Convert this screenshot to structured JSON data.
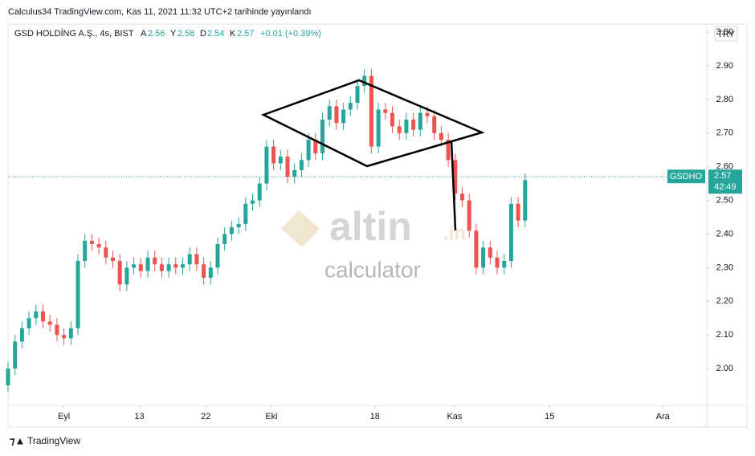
{
  "chart_data": {
    "type": "candlestick",
    "published": "Calculus34 TradingView.com, Kas 11, 2021 11:32 UTC+2 tarihinde yayınlandı",
    "symbol": "GSD HOLDİNG A.Ş., 4s, BIST",
    "legend_items": [
      {
        "key": "A",
        "value": 2.56
      },
      {
        "key": "Y",
        "value": 2.58
      },
      {
        "key": "D",
        "value": 2.54
      },
      {
        "key": "K",
        "value": 2.57
      }
    ],
    "change": "+0.01 (+0.39%)",
    "currency": "TRY",
    "last_label": "GSDHO",
    "last_price": 2.57,
    "countdown": "42:49",
    "watermark": [
      "altin",
      ".in",
      "calculator"
    ],
    "footer": "TradingView",
    "up_color": "#26a69a",
    "down_color": "#ef5350",
    "x": [
      0,
      1,
      2,
      3,
      4,
      5,
      6,
      7,
      8,
      9,
      10,
      11,
      12,
      13,
      14,
      15,
      16,
      17,
      18,
      19,
      20,
      21,
      22,
      23,
      24,
      25,
      26,
      27,
      28,
      29,
      30,
      31,
      32,
      33,
      34,
      35,
      36,
      37,
      38,
      39,
      40,
      41,
      42,
      43,
      44,
      45,
      46,
      47,
      48,
      49,
      50,
      51,
      52,
      53,
      54,
      55,
      56,
      57,
      58,
      59,
      60,
      61,
      62,
      63,
      64,
      65,
      66,
      67,
      68,
      69,
      70,
      71,
      72,
      73,
      74
    ],
    "open": [
      1.95,
      2.0,
      2.08,
      2.12,
      2.15,
      2.17,
      2.14,
      2.13,
      2.1,
      2.09,
      2.12,
      2.32,
      2.38,
      2.37,
      2.36,
      2.33,
      2.32,
      2.25,
      2.3,
      2.31,
      2.29,
      2.33,
      2.31,
      2.29,
      2.31,
      2.3,
      2.31,
      2.34,
      2.31,
      2.27,
      2.3,
      2.37,
      2.4,
      2.42,
      2.43,
      2.49,
      2.5,
      2.55,
      2.66,
      2.61,
      2.63,
      2.57,
      2.59,
      2.62,
      2.68,
      2.64,
      2.74,
      2.78,
      2.73,
      2.77,
      2.79,
      2.84,
      2.87,
      2.66,
      2.77,
      2.76,
      2.72,
      2.7,
      2.74,
      2.71,
      2.76,
      2.75,
      2.7,
      2.68,
      2.62,
      2.52,
      2.5,
      2.41,
      2.3,
      2.36,
      2.33,
      2.3,
      2.32,
      2.49,
      2.44
    ],
    "high": [
      2.02,
      2.1,
      2.14,
      2.17,
      2.19,
      2.19,
      2.16,
      2.15,
      2.12,
      2.14,
      2.34,
      2.4,
      2.4,
      2.39,
      2.38,
      2.35,
      2.34,
      2.32,
      2.33,
      2.33,
      2.35,
      2.35,
      2.33,
      2.33,
      2.33,
      2.33,
      2.36,
      2.36,
      2.33,
      2.32,
      2.39,
      2.42,
      2.44,
      2.45,
      2.51,
      2.52,
      2.57,
      2.68,
      2.68,
      2.65,
      2.65,
      2.61,
      2.64,
      2.7,
      2.7,
      2.76,
      2.8,
      2.8,
      2.79,
      2.81,
      2.86,
      2.89,
      2.89,
      2.79,
      2.79,
      2.78,
      2.74,
      2.76,
      2.76,
      2.78,
      2.78,
      2.77,
      2.72,
      2.7,
      2.64,
      2.54,
      2.52,
      2.43,
      2.38,
      2.38,
      2.35,
      2.34,
      2.51,
      2.51,
      2.58
    ],
    "low": [
      1.93,
      1.98,
      2.06,
      2.1,
      2.13,
      2.12,
      2.11,
      2.08,
      2.07,
      2.07,
      2.1,
      2.3,
      2.35,
      2.34,
      2.31,
      2.3,
      2.23,
      2.23,
      2.28,
      2.27,
      2.27,
      2.29,
      2.27,
      2.27,
      2.28,
      2.28,
      2.29,
      2.29,
      2.25,
      2.25,
      2.28,
      2.35,
      2.38,
      2.4,
      2.41,
      2.47,
      2.48,
      2.53,
      2.59,
      2.59,
      2.55,
      2.55,
      2.57,
      2.6,
      2.62,
      2.62,
      2.72,
      2.71,
      2.71,
      2.75,
      2.77,
      2.82,
      2.64,
      2.64,
      2.74,
      2.7,
      2.68,
      2.68,
      2.69,
      2.69,
      2.73,
      2.68,
      2.66,
      2.6,
      2.5,
      2.48,
      2.39,
      2.28,
      2.28,
      2.31,
      2.28,
      2.28,
      2.3,
      2.42,
      2.42
    ],
    "close": [
      2.0,
      2.08,
      2.12,
      2.15,
      2.17,
      2.14,
      2.13,
      2.1,
      2.09,
      2.12,
      2.32,
      2.38,
      2.37,
      2.36,
      2.33,
      2.32,
      2.25,
      2.3,
      2.31,
      2.29,
      2.33,
      2.31,
      2.29,
      2.31,
      2.3,
      2.31,
      2.34,
      2.31,
      2.27,
      2.3,
      2.37,
      2.4,
      2.42,
      2.43,
      2.49,
      2.5,
      2.55,
      2.66,
      2.61,
      2.63,
      2.57,
      2.59,
      2.62,
      2.68,
      2.64,
      2.74,
      2.78,
      2.73,
      2.77,
      2.79,
      2.84,
      2.87,
      2.66,
      2.77,
      2.76,
      2.72,
      2.7,
      2.74,
      2.71,
      2.76,
      2.75,
      2.7,
      2.68,
      2.62,
      2.52,
      2.5,
      2.41,
      2.3,
      2.36,
      2.33,
      2.3,
      2.32,
      2.49,
      2.44,
      2.56
    ],
    "xlim": [
      0,
      100
    ],
    "xticks": [
      {
        "value": 8,
        "label": "Eyl"
      },
      {
        "value": 18.8,
        "label": "13"
      },
      {
        "value": 28.3,
        "label": "22"
      },
      {
        "value": 37.7,
        "label": "Eki"
      },
      {
        "value": 52.5,
        "label": "18"
      },
      {
        "value": 63.9,
        "label": "Kas"
      },
      {
        "value": 77.5,
        "label": "15"
      },
      {
        "value": 93.7,
        "label": "Ara"
      }
    ],
    "ylim": [
      1.8904,
      3.0241
    ],
    "yticks": [
      {
        "value": 2.0,
        "label": "2.00"
      },
      {
        "value": 2.1,
        "label": "2.10"
      },
      {
        "value": 2.2,
        "label": "2.20"
      },
      {
        "value": 2.3,
        "label": "2.30"
      },
      {
        "value": 2.4,
        "label": "2.40"
      },
      {
        "value": 2.5,
        "label": "2.50"
      },
      {
        "value": 2.6,
        "label": "2.60"
      },
      {
        "value": 2.7,
        "label": "2.70"
      },
      {
        "value": 2.8,
        "label": "2.80"
      },
      {
        "value": 2.9,
        "label": "2.90"
      },
      {
        "value": 3.0,
        "label": "3.00"
      }
    ]
  }
}
